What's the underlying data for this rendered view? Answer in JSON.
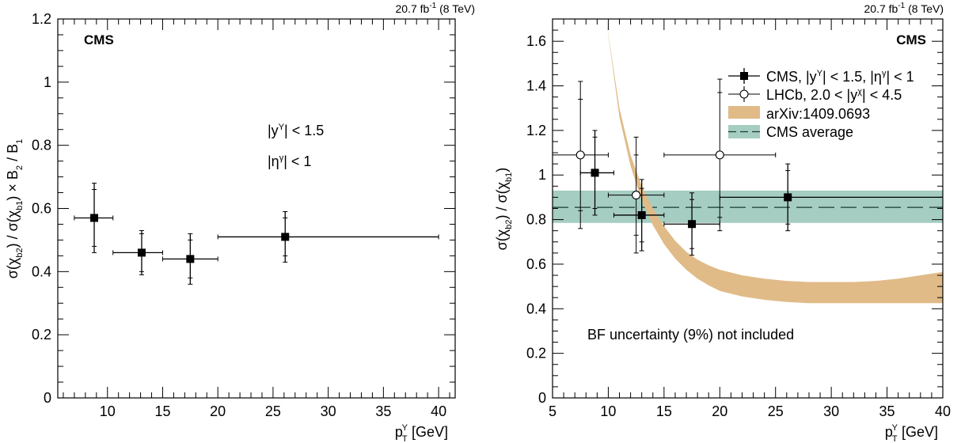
{
  "chart_data": [
    {
      "type": "scatter",
      "lumi_label": "20.7 fb",
      "lumi_sup": "-1",
      "lumi_energy": " (8 TeV)",
      "experiment": "CMS",
      "ylabel": "σ(χb2) / σ(χb1) × B2 / B1",
      "xlabel": "pTΥ [GeV]",
      "xlim": [
        5.5,
        41.5
      ],
      "ylim": [
        0,
        1.2
      ],
      "xticks": [
        10,
        15,
        20,
        25,
        30,
        35,
        40
      ],
      "yticks": [
        0,
        0.2,
        0.4,
        0.6,
        0.8,
        1,
        1.2
      ],
      "annotation_rapidity": "|yΥ| <  1.5",
      "annotation_eta": "|ηγ| <  1",
      "series": [
        {
          "marker": "filled-square",
          "points": [
            {
              "x": 8.8,
              "y": 0.57,
              "xlo": 7.0,
              "xhi": 10.5,
              "stat": 0.09,
              "tot": 0.11
            },
            {
              "x": 13.1,
              "y": 0.46,
              "xlo": 10.5,
              "xhi": 15.0,
              "stat": 0.06,
              "tot": 0.07
            },
            {
              "x": 17.5,
              "y": 0.44,
              "xlo": 15.0,
              "xhi": 20.0,
              "stat": 0.06,
              "tot": 0.08
            },
            {
              "x": 26.1,
              "y": 0.51,
              "xlo": 20.0,
              "xhi": 40.0,
              "stat": 0.06,
              "tot": 0.08
            }
          ]
        }
      ]
    },
    {
      "type": "scatter",
      "lumi_label": "20.7 fb",
      "lumi_sup": "-1",
      "lumi_energy": " (8 TeV)",
      "experiment": "CMS",
      "ylabel": "σ(χb2) / σ(χb1)",
      "xlabel": "pTΥ [GeV]",
      "xlim": [
        5,
        40
      ],
      "ylim": [
        0,
        1.7
      ],
      "xticks": [
        5,
        10,
        15,
        20,
        25,
        30,
        35,
        40
      ],
      "yticks": [
        0,
        0.2,
        0.4,
        0.6,
        0.8,
        1,
        1.2,
        1.4,
        1.6
      ],
      "note": "BF uncertainty (9%) not included",
      "legend_position": "top-right",
      "legend": [
        "CMS, |yΥ| < 1.5, |ηγ| < 1",
        "LHCb, 2.0 < |yχ| < 4.5",
        "arXiv:1409.0693",
        "CMS average"
      ],
      "colors": {
        "theory_band": "#e0bb88",
        "average_band": "#a6cdc2"
      },
      "average": {
        "value": 0.855,
        "low": 0.785,
        "high": 0.93
      },
      "theory_band": {
        "x": [
          9.8,
          11,
          12,
          13,
          14,
          15,
          16,
          17,
          18,
          19,
          20,
          22,
          24,
          26,
          28,
          30,
          32,
          34,
          36,
          38,
          40
        ],
        "low": [
          1.7,
          1.26,
          1.04,
          0.885,
          0.775,
          0.69,
          0.625,
          0.575,
          0.535,
          0.505,
          0.48,
          0.455,
          0.44,
          0.43,
          0.425,
          0.425,
          0.425,
          0.425,
          0.425,
          0.425,
          0.425
        ],
        "high": [
          1.7,
          1.3,
          1.09,
          0.95,
          0.85,
          0.77,
          0.705,
          0.655,
          0.62,
          0.595,
          0.575,
          0.55,
          0.535,
          0.525,
          0.52,
          0.52,
          0.52,
          0.525,
          0.535,
          0.55,
          0.565
        ]
      },
      "series": [
        {
          "name": "CMS, |yΥ| < 1.5, |ηγ| < 1",
          "marker": "filled-square",
          "points": [
            {
              "x": 8.8,
              "y": 1.01,
              "xlo": 7.5,
              "xhi": 10.5,
              "stat": 0.16,
              "tot": 0.19
            },
            {
              "x": 13.0,
              "y": 0.82,
              "xlo": 10.5,
              "xhi": 15.0,
              "stat": 0.12,
              "tot": 0.16
            },
            {
              "x": 17.5,
              "y": 0.78,
              "xlo": 15.0,
              "xhi": 20.0,
              "stat": 0.11,
              "tot": 0.14
            },
            {
              "x": 26.1,
              "y": 0.9,
              "xlo": 20.0,
              "xhi": 40.0,
              "stat": 0.12,
              "tot": 0.15
            }
          ]
        },
        {
          "name": "LHCb, 2.0 < |yχ| < 4.5",
          "marker": "open-circle",
          "points": [
            {
              "x": 7.5,
              "y": 1.09,
              "xlo": 5.0,
              "xhi": 10.0,
              "stat": 0.25,
              "tot": 0.33
            },
            {
              "x": 12.5,
              "y": 0.91,
              "xlo": 10.0,
              "xhi": 15.0,
              "stat": 0.18,
              "tot": 0.26
            },
            {
              "x": 20.0,
              "y": 1.09,
              "xlo": 15.0,
              "xhi": 25.0,
              "stat": 0.28,
              "tot": 0.34
            }
          ]
        }
      ]
    }
  ]
}
